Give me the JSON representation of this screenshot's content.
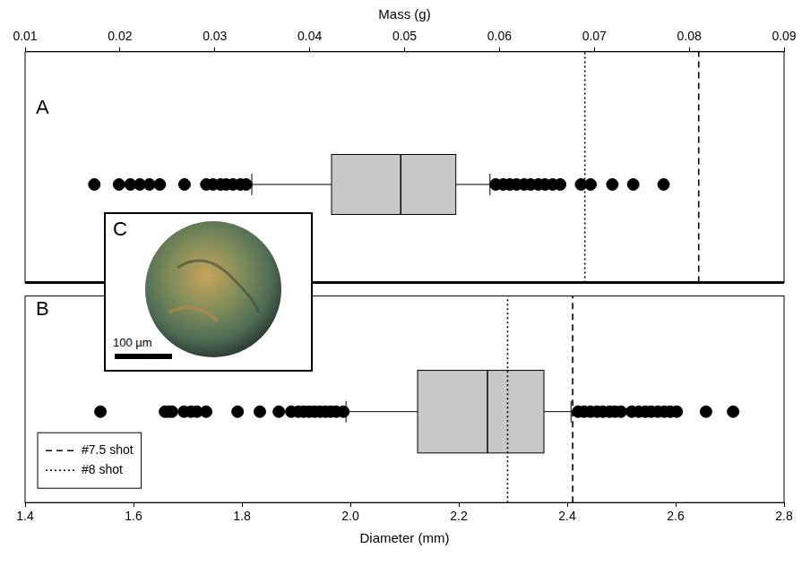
{
  "chart_data": [
    {
      "type": "boxplot",
      "title": "A",
      "x_label": "Mass (g)",
      "xlim": [
        0.01,
        0.09
      ],
      "xticks": [
        0.01,
        0.02,
        0.03,
        0.04,
        0.05,
        0.06,
        0.07,
        0.08,
        0.09
      ],
      "grid": false,
      "color": "#c8c8c8",
      "q1": 0.0423,
      "median": 0.0496,
      "q3": 0.0554,
      "whisker_low": 0.0339,
      "whisker_high": 0.059,
      "outliers": [
        0.0173,
        0.0199,
        0.0211,
        0.0221,
        0.0231,
        0.0242,
        0.0268,
        0.0291,
        0.0298,
        0.0306,
        0.0312,
        0.0319,
        0.0327,
        0.0333,
        0.0596,
        0.0604,
        0.0611,
        0.0618,
        0.0626,
        0.0633,
        0.0641,
        0.0648,
        0.0656,
        0.0664,
        0.0686,
        0.0696,
        0.0719,
        0.0741,
        0.0773
      ],
      "marker": "circle",
      "reference_lines": [
        {
          "name": "#7.5 shot",
          "value": 0.081,
          "line_style": "dashed",
          "color": "#000000"
        },
        {
          "name": "#8 shot",
          "value": 0.069,
          "line_style": "dotted",
          "color": "#000000"
        }
      ]
    },
    {
      "type": "boxplot",
      "title": "B",
      "x_label": "Diameter (mm)",
      "xlim": [
        1.4,
        2.8
      ],
      "xticks": [
        1.4,
        1.6,
        1.8,
        {
          "value": 2,
          "label": "2.0"
        },
        2.2,
        2.4,
        2.6,
        2.8
      ],
      "grid": false,
      "color": "#c8c8c8",
      "q1": 2.124,
      "median": 2.253,
      "q3": 2.357,
      "whisker_low": 1.992,
      "whisker_high": 2.407,
      "outliers": [
        1.539,
        1.658,
        1.664,
        1.671,
        1.693,
        1.706,
        1.717,
        1.734,
        1.792,
        1.833,
        1.868,
        1.891,
        1.904,
        1.914,
        1.924,
        1.934,
        1.944,
        1.954,
        1.964,
        1.974,
        1.987,
        2.42,
        2.431,
        2.443,
        2.455,
        2.466,
        2.478,
        2.488,
        2.499,
        2.519,
        2.532,
        2.544,
        2.555,
        2.567,
        2.579,
        2.59,
        2.602,
        2.656,
        2.706
      ],
      "marker": "circle",
      "legend": "lower left",
      "reference_lines": [
        {
          "name": "#7.5 shot",
          "value": 2.41,
          "line_style": "dashed",
          "color": "#000000"
        },
        {
          "name": "#8 shot",
          "value": 2.29,
          "line_style": "dotted",
          "color": "#000000"
        }
      ]
    }
  ],
  "inset": {
    "label": "C",
    "scale_bar": "100 µm"
  }
}
